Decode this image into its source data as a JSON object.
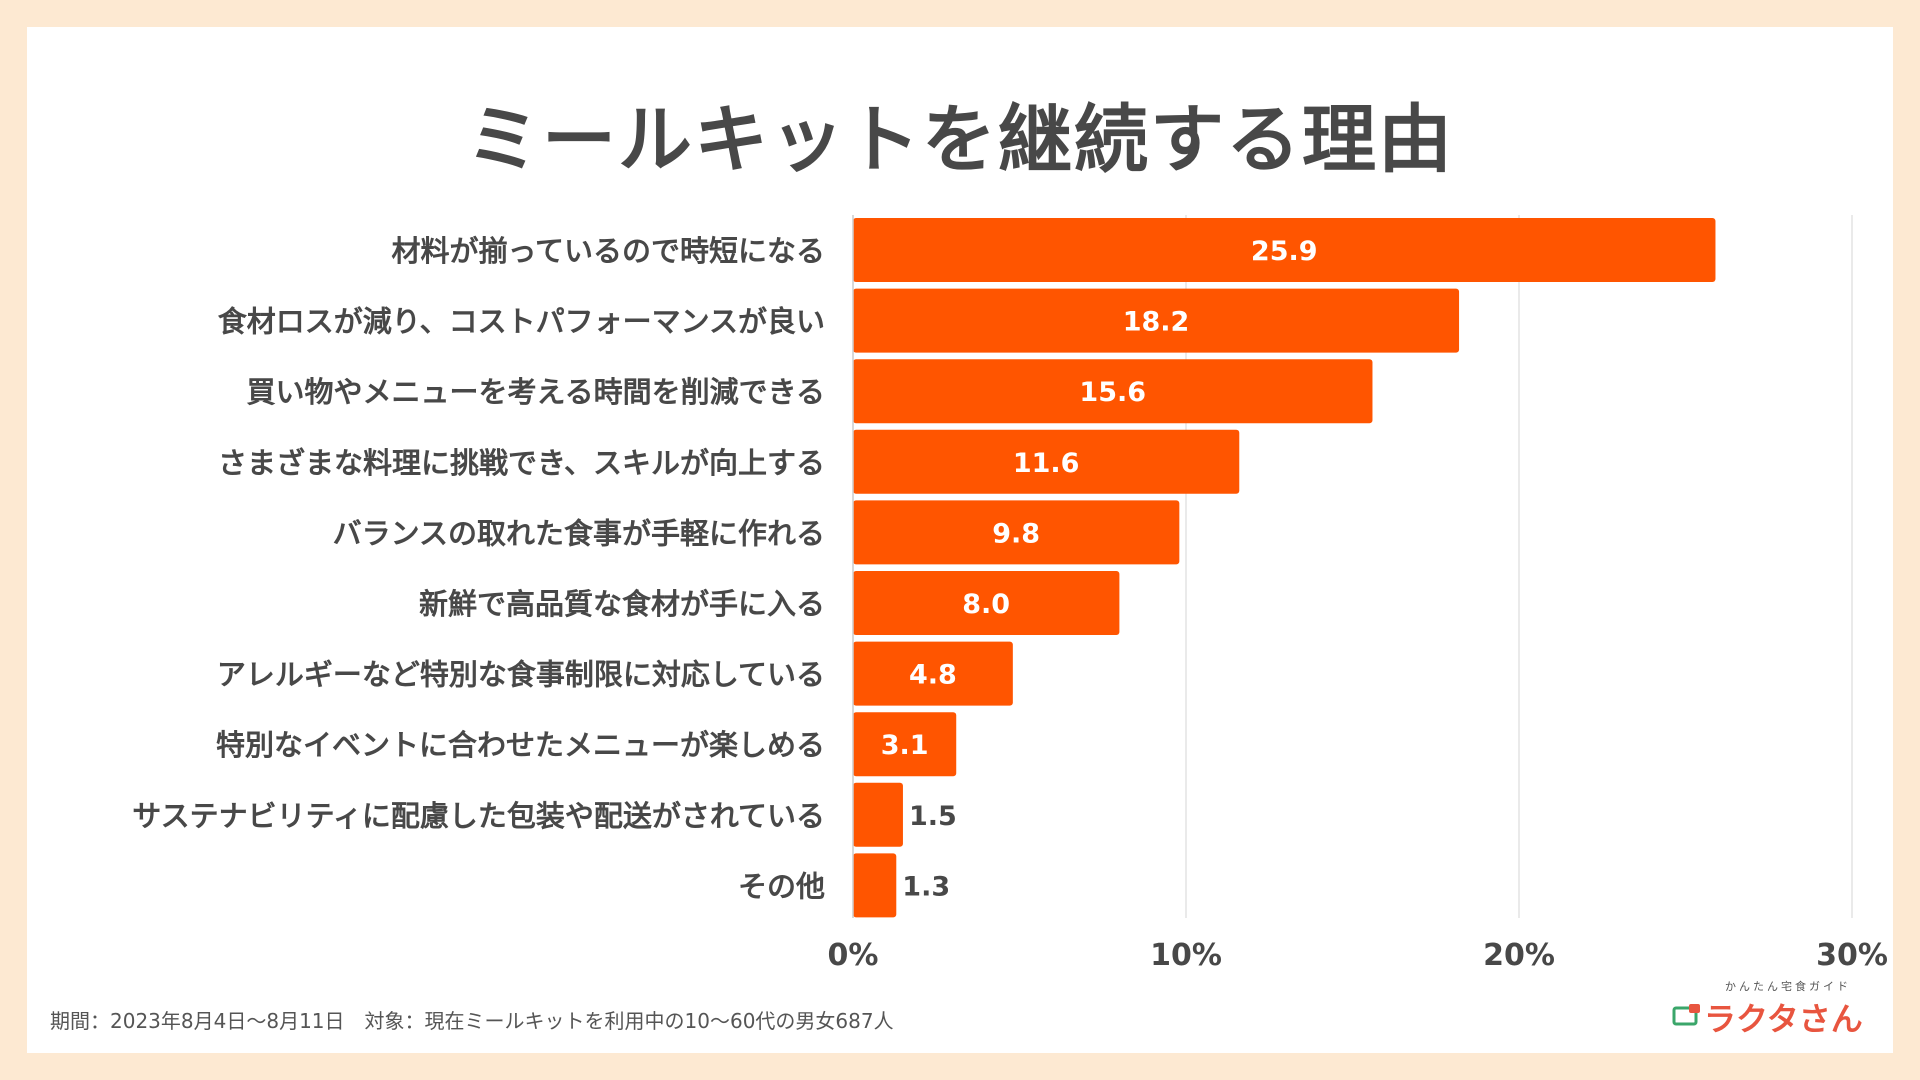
{
  "title": "ミールキットを継続する理由",
  "chart_data": {
    "type": "bar",
    "orientation": "horizontal",
    "categories": [
      "材料が揃っているので時短になる",
      "食材ロスが減り、コストパフォーマンスが良い",
      "買い物やメニューを考える時間を削減できる",
      "さまざまな料理に挑戦でき、スキルが向上する",
      "バランスの取れた食事が手軽に作れる",
      "新鮮で高品質な食材が手に入る",
      "アレルギーなど特別な食事制限に対応している",
      "特別なイベントに合わせたメニューが楽しめる",
      "サステナビリティに配慮した包装や配送がされている",
      "その他"
    ],
    "values": [
      25.9,
      18.2,
      15.6,
      11.6,
      9.8,
      8.0,
      4.8,
      3.1,
      1.5,
      1.3
    ],
    "value_labels": [
      "25.9",
      "18.2",
      "15.6",
      "11.6",
      "9.8",
      "8.0",
      "4.8",
      "3.1",
      "1.5",
      "1.3"
    ],
    "xlim": [
      0,
      30
    ],
    "xticks": [
      0,
      10,
      20,
      30
    ],
    "xtick_labels": [
      "0%",
      "10%",
      "20%",
      "30%"
    ],
    "bar_color": "#ff5500",
    "grid": true
  },
  "footnote": "期間：2023年8月4日〜8月11日　対象：現在ミールキットを利用中の10〜60代の男女687人",
  "logo": {
    "subtitle": "かんたん宅食ガイド",
    "name": "ラクタさん"
  }
}
